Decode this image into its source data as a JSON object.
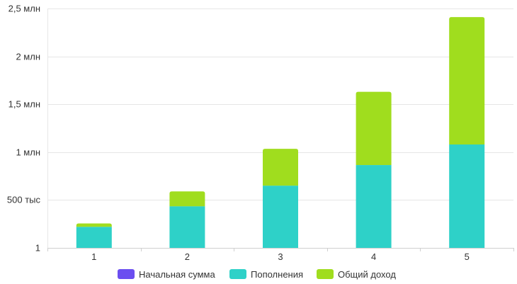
{
  "chart_data": {
    "type": "bar",
    "stacked": true,
    "categories": [
      "1",
      "2",
      "3",
      "4",
      "5"
    ],
    "series": [
      {
        "name": "Начальная сумма",
        "color": "#6b4ef0",
        "values": [
          0,
          0,
          0,
          0,
          0
        ]
      },
      {
        "name": "Пополнения",
        "color": "#2ed1c8",
        "values": [
          220000,
          435000,
          650000,
          865000,
          1080000
        ]
      },
      {
        "name": "Общий доход",
        "color": "#a0dd1e",
        "values": [
          35000,
          155000,
          385000,
          765000,
          1330000
        ]
      }
    ],
    "y_ticks": [
      {
        "value": 1,
        "label": "1"
      },
      {
        "value": 500000,
        "label": "500 тыс"
      },
      {
        "value": 1000000,
        "label": "1 млн"
      },
      {
        "value": 1500000,
        "label": "1,5 млн"
      },
      {
        "value": 2000000,
        "label": "2 млн"
      },
      {
        "value": 2500000,
        "label": "2,5 млн"
      }
    ],
    "ylim": [
      0,
      2500000
    ],
    "grid": true,
    "legend_position": "bottom"
  }
}
